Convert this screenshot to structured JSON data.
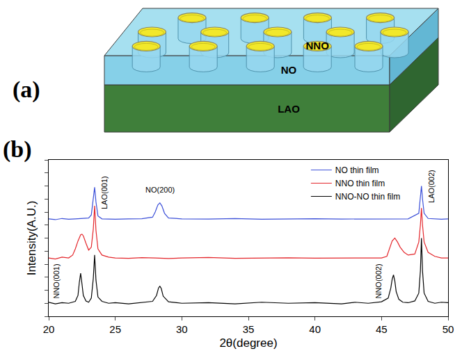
{
  "figure": {
    "panel_labels": [
      "(a)",
      "(b)"
    ]
  },
  "diagram": {
    "texts": [
      "NNO",
      "NO",
      "LAO"
    ]
  },
  "chart_data": {
    "type": "line",
    "x_label": "2θ(degree)",
    "y_label": "Intensity(A.U.)",
    "xlim": [
      20,
      50
    ],
    "xticks": [
      20,
      25,
      30,
      35,
      40,
      45,
      50
    ],
    "ylim": [
      1,
      1000000000000
    ],
    "yticks": [
      1,
      10,
      100,
      1000,
      10000,
      100000,
      1000000,
      10000000,
      100000000,
      1000000000,
      10000000000,
      100000000000,
      1000000000000
    ],
    "log": "y",
    "tick_labels": "x",
    "grid": false,
    "legend": "upper right",
    "series": [
      {
        "name": "NO thin film",
        "color": "#3b4fd8",
        "x": [
          20,
          20.5,
          21,
          21.5,
          22,
          22.5,
          23,
          23.2,
          23.35,
          23.45,
          23.55,
          23.7,
          24,
          25,
          26,
          27,
          27.8,
          28,
          28.2,
          28.35,
          28.5,
          28.7,
          29,
          30,
          32,
          34,
          36,
          38,
          40,
          42,
          44,
          46,
          47,
          47.8,
          47.92,
          48,
          48.08,
          48.2,
          48.5,
          49,
          49.5,
          50
        ],
        "values": [
          30000000,
          26000000,
          32000000,
          28000000,
          30000000,
          33000000,
          35000000,
          60000000,
          800000000,
          8000000000,
          600000000,
          50000000,
          30000000,
          28000000,
          30000000,
          31000000,
          40000000,
          100000000,
          350000000,
          500000000,
          300000000,
          80000000,
          35000000,
          30000000,
          29000000,
          32000000,
          28000000,
          30000000,
          31000000,
          29000000,
          30000000,
          32000000,
          30000000,
          80000000,
          1000000000,
          10000000000,
          1000000000,
          80000000,
          32000000,
          30000000,
          28000000,
          30000000
        ]
      },
      {
        "name": "NNO thin film",
        "color": "#e4262b",
        "x": [
          20,
          20.5,
          21,
          21.5,
          21.8,
          22,
          22.2,
          22.4,
          22.5,
          22.6,
          22.8,
          23,
          23.2,
          23.35,
          23.45,
          23.55,
          23.7,
          24,
          24.5,
          25,
          26,
          27,
          28,
          29,
          30,
          32,
          34,
          36,
          38,
          40,
          42,
          44,
          45,
          45.4,
          45.6,
          45.8,
          46,
          46.2,
          46.4,
          46.7,
          47,
          47.5,
          47.8,
          47.92,
          48,
          48.08,
          48.2,
          48.5,
          49,
          49.5,
          50
        ],
        "values": [
          30000,
          25000,
          35000,
          30000,
          50000,
          150000,
          600000,
          1800000,
          2000000,
          1500000,
          400000,
          120000,
          200000,
          5000000,
          300000000,
          4000000,
          150000,
          50000,
          35000,
          30000,
          28000,
          32000,
          30000,
          27000,
          30000,
          33000,
          28000,
          30000,
          31000,
          29000,
          30000,
          32000,
          30000,
          40000,
          150000,
          600000,
          1000000,
          500000,
          200000,
          80000,
          50000,
          60000,
          500000,
          10000000,
          200000000,
          10000000,
          500000,
          80000,
          40000,
          30000,
          30000
        ]
      },
      {
        "name": "NNO-NO thin film",
        "color": "#000000",
        "x": [
          20,
          20.5,
          21,
          21.5,
          22,
          22.2,
          22.3,
          22.4,
          22.5,
          22.6,
          22.8,
          23,
          23.2,
          23.35,
          23.45,
          23.55,
          23.7,
          24,
          24.5,
          25,
          26,
          27,
          27.8,
          28.1,
          28.25,
          28.35,
          28.45,
          28.6,
          29,
          30,
          32,
          34,
          36,
          38,
          40,
          42,
          43,
          44,
          45,
          45.5,
          45.7,
          45.8,
          45.9,
          46,
          46.1,
          46.3,
          46.6,
          47,
          47.5,
          47.8,
          47.92,
          48,
          48.08,
          48.2,
          48.5,
          49,
          49.5,
          50
        ],
        "values": [
          12,
          9,
          11,
          10,
          14,
          40,
          400,
          2000,
          300,
          40,
          15,
          12,
          25,
          800,
          50000,
          600,
          30,
          14,
          10,
          11,
          9,
          12,
          14,
          40,
          150,
          200,
          140,
          35,
          13,
          10,
          11,
          9,
          12,
          10,
          11,
          9,
          12,
          10,
          13,
          25,
          150,
          700,
          1500,
          500,
          80,
          20,
          12,
          11,
          15,
          60,
          3000,
          1000000,
          3000,
          60,
          14,
          10,
          12,
          11
        ]
      }
    ],
    "annotations": [
      {
        "text": "LAO(001)",
        "x": 23.8,
        "y": 3000000000
      },
      {
        "text": "NO(200)",
        "x": 28.35,
        "y": 2000000000
      },
      {
        "text": "NNO(001)",
        "x": 21.0,
        "y": 500
      },
      {
        "text": "NNO(002)",
        "x": 45.2,
        "y": 500
      },
      {
        "text": "LAO(002)",
        "x": 48.3,
        "y": 10000000000
      }
    ]
  }
}
